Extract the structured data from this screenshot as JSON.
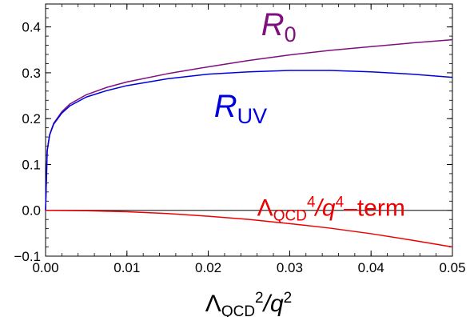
{
  "chart_data": {
    "type": "line",
    "xlabel": "Λ_QCD²/q²",
    "xlabel_parts": {
      "sym": "Λ",
      "sub": "QCD",
      "sup1": "2",
      "mid": "/q",
      "sup2": "2"
    },
    "xlim": [
      0,
      0.05
    ],
    "ylim": [
      -0.1,
      0.45
    ],
    "x_ticks": [
      0.0,
      0.01,
      0.02,
      0.03,
      0.04,
      0.05
    ],
    "x_tick_labels": [
      "0.00",
      "0.01",
      "0.02",
      "0.03",
      "0.04",
      "0.05"
    ],
    "y_ticks": [
      -0.1,
      0.0,
      0.1,
      0.2,
      0.3,
      0.4
    ],
    "y_tick_labels": [
      "−0.1",
      "0.0",
      "0.1",
      "0.2",
      "0.3",
      "0.4"
    ],
    "grid": false,
    "zero_line": true,
    "series": [
      {
        "name": "R_0",
        "label_parts": {
          "main": "R",
          "sub": "0"
        },
        "color": "#7f0f7f",
        "label_at": [
          0.0265,
          0.382
        ],
        "x": [
          0,
          0.0002,
          0.0005,
          0.001,
          0.002,
          0.003,
          0.005,
          0.0075,
          0.01,
          0.015,
          0.02,
          0.025,
          0.03,
          0.035,
          0.04,
          0.045,
          0.05
        ],
        "y": [
          0,
          0.13,
          0.165,
          0.19,
          0.215,
          0.232,
          0.252,
          0.268,
          0.28,
          0.298,
          0.313,
          0.327,
          0.339,
          0.349,
          0.357,
          0.365,
          0.372
        ]
      },
      {
        "name": "R_UV",
        "label_parts": {
          "main": "R",
          "sub": "UV"
        },
        "color": "#0000dd",
        "label_at": [
          0.0207,
          0.204
        ],
        "x": [
          0,
          0.0002,
          0.0005,
          0.001,
          0.002,
          0.003,
          0.005,
          0.0075,
          0.01,
          0.015,
          0.02,
          0.025,
          0.03,
          0.035,
          0.04,
          0.045,
          0.05
        ],
        "y": [
          0,
          0.13,
          0.164,
          0.188,
          0.212,
          0.228,
          0.247,
          0.261,
          0.272,
          0.287,
          0.297,
          0.302,
          0.305,
          0.305,
          0.302,
          0.297,
          0.29
        ]
      },
      {
        "name": "Λ_QCD⁴/q⁴–term",
        "label_parts": {
          "sym": "Λ",
          "sub": "QCD",
          "sup1": "4",
          "mid": "/q",
          "sup2": "4",
          "tail": "–term"
        },
        "color": "#ee0000",
        "label_at": [
          0.026,
          -0.012
        ],
        "x": [
          0,
          0.005,
          0.01,
          0.015,
          0.02,
          0.025,
          0.03,
          0.035,
          0.04,
          0.045,
          0.05
        ],
        "y": [
          0,
          -0.001,
          -0.003,
          -0.007,
          -0.013,
          -0.02,
          -0.029,
          -0.039,
          -0.051,
          -0.065,
          -0.08
        ]
      }
    ]
  }
}
